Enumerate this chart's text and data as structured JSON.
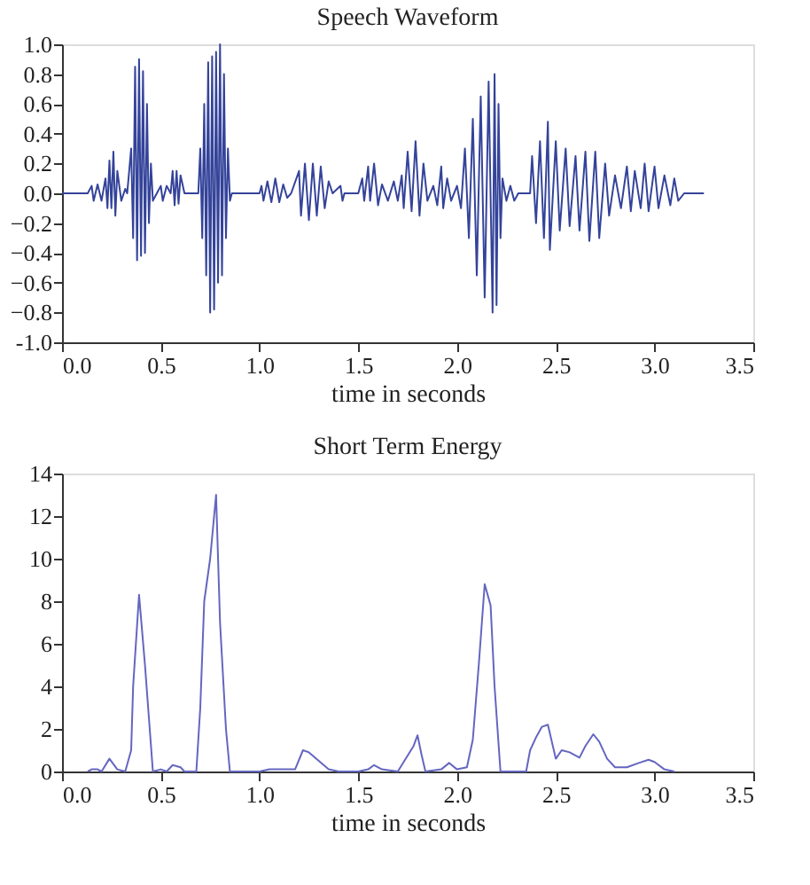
{
  "chart_data": [
    {
      "type": "line",
      "title": "Speech Waveform",
      "xlabel": "time in seconds",
      "xlim": [
        0,
        3.5
      ],
      "xticks": [
        {
          "value": 0,
          "label": "0.0"
        },
        0.5,
        {
          "value": 1,
          "label": "1.0"
        },
        1.5,
        {
          "value": 2,
          "label": "2.0"
        },
        2.5,
        {
          "value": 3,
          "label": "3.0"
        },
        3.5
      ],
      "ylim": [
        -1,
        1
      ],
      "yticks": [
        {
          "value": -1,
          "label": "-1.0"
        },
        -0.8,
        -0.6,
        -0.4,
        -0.2,
        {
          "value": 0,
          "label": "0.0"
        },
        0.2,
        0.4,
        0.6,
        0.8,
        {
          "value": 1,
          "label": "1.0"
        }
      ],
      "grid": false,
      "series": [
        {
          "color": "#34439a",
          "x": [
            0.0,
            0.13,
            0.15,
            0.16,
            0.18,
            0.2,
            0.22,
            0.23,
            0.24,
            0.25,
            0.26,
            0.27,
            0.28,
            0.3,
            0.32,
            0.33,
            0.35,
            0.36,
            0.37,
            0.38,
            0.39,
            0.4,
            0.41,
            0.42,
            0.43,
            0.44,
            0.45,
            0.46,
            0.48,
            0.5,
            0.51,
            0.53,
            0.55,
            0.56,
            0.57,
            0.58,
            0.59,
            0.6,
            0.62,
            0.69,
            0.7,
            0.71,
            0.72,
            0.73,
            0.74,
            0.75,
            0.76,
            0.77,
            0.78,
            0.79,
            0.8,
            0.81,
            0.82,
            0.83,
            0.84,
            0.85,
            0.86,
            1.0,
            1.01,
            1.02,
            1.04,
            1.06,
            1.08,
            1.1,
            1.12,
            1.14,
            1.16,
            1.2,
            1.21,
            1.23,
            1.25,
            1.27,
            1.29,
            1.31,
            1.33,
            1.35,
            1.37,
            1.41,
            1.42,
            1.43,
            1.5,
            1.52,
            1.53,
            1.55,
            1.56,
            1.58,
            1.6,
            1.62,
            1.65,
            1.68,
            1.7,
            1.72,
            1.73,
            1.75,
            1.77,
            1.79,
            1.81,
            1.83,
            1.85,
            1.88,
            1.9,
            1.92,
            1.93,
            1.95,
            1.97,
            2.0,
            2.02,
            2.04,
            2.06,
            2.08,
            2.1,
            2.12,
            2.14,
            2.16,
            2.18,
            2.19,
            2.2,
            2.21,
            2.22,
            2.23,
            2.25,
            2.27,
            2.29,
            2.31,
            2.37,
            2.38,
            2.4,
            2.42,
            2.44,
            2.46,
            2.47,
            2.5,
            2.52,
            2.55,
            2.57,
            2.6,
            2.62,
            2.65,
            2.67,
            2.7,
            2.72,
            2.75,
            2.77,
            2.8,
            2.83,
            2.86,
            2.88,
            2.9,
            2.93,
            2.95,
            2.97,
            3.0,
            3.02,
            3.05,
            3.08,
            3.1,
            3.12,
            3.15,
            3.25
          ],
          "values": [
            0,
            0,
            0.05,
            -0.05,
            0.06,
            -0.05,
            0.1,
            -0.1,
            0.22,
            -0.1,
            0.28,
            -0.15,
            0.15,
            -0.05,
            0.03,
            0,
            0.3,
            -0.3,
            0.85,
            -0.45,
            0.9,
            -0.42,
            0.82,
            -0.4,
            0.6,
            -0.2,
            0.2,
            -0.05,
            0,
            0.05,
            -0.05,
            0.05,
            0,
            0.15,
            -0.08,
            0.15,
            -0.07,
            0.12,
            0,
            0,
            0.3,
            -0.3,
            0.6,
            -0.55,
            0.88,
            -0.8,
            0.92,
            -0.78,
            0.95,
            -0.6,
            1.0,
            -0.55,
            0.8,
            -0.3,
            0.3,
            -0.05,
            0,
            0,
            0.05,
            -0.05,
            0.08,
            -0.06,
            0.1,
            -0.06,
            0.06,
            -0.03,
            0,
            0.15,
            -0.15,
            0.2,
            -0.18,
            0.2,
            -0.15,
            0.18,
            -0.1,
            0.08,
            0,
            0.05,
            -0.05,
            0,
            0,
            0.1,
            -0.05,
            0.18,
            -0.05,
            0.2,
            -0.08,
            0.06,
            -0.05,
            0.08,
            -0.05,
            0.12,
            -0.1,
            0.28,
            -0.12,
            0.35,
            -0.15,
            0.2,
            -0.05,
            0.05,
            -0.08,
            0.18,
            -0.1,
            0.1,
            -0.05,
            0.05,
            -0.1,
            0.3,
            -0.3,
            0.5,
            -0.55,
            0.65,
            -0.7,
            0.75,
            -0.8,
            0.8,
            -0.75,
            0.6,
            -0.3,
            0.1,
            -0.05,
            0.05,
            -0.05,
            0,
            0,
            0.25,
            -0.2,
            0.35,
            -0.3,
            0.48,
            -0.38,
            0.35,
            -0.25,
            0.3,
            -0.22,
            0.25,
            -0.25,
            0.28,
            -0.32,
            0.28,
            -0.3,
            0.2,
            -0.15,
            0.12,
            -0.1,
            0.18,
            -0.12,
            0.15,
            -0.1,
            0.2,
            -0.12,
            0.18,
            -0.1,
            0.12,
            -0.08,
            0.1,
            -0.05,
            0,
            0
          ]
        }
      ]
    },
    {
      "type": "line",
      "title": "Short Term Energy",
      "xlabel": "time in seconds",
      "xlim": [
        0,
        3.5
      ],
      "xticks": [
        {
          "value": 0,
          "label": "0.0"
        },
        0.5,
        {
          "value": 1,
          "label": "1.0"
        },
        1.5,
        {
          "value": 2,
          "label": "2.0"
        },
        2.5,
        {
          "value": 3,
          "label": "3.0"
        },
        3.5
      ],
      "ylim": [
        0,
        14
      ],
      "yticks": [
        0,
        2,
        4,
        6,
        8,
        10,
        12,
        14
      ],
      "grid": false,
      "series": [
        {
          "color": "#6466c0",
          "x": [
            0.13,
            0.15,
            0.18,
            0.2,
            0.24,
            0.28,
            0.32,
            0.35,
            0.36,
            0.39,
            0.42,
            0.44,
            0.46,
            0.5,
            0.53,
            0.56,
            0.6,
            0.62,
            0.68,
            0.7,
            0.72,
            0.75,
            0.78,
            0.8,
            0.83,
            0.85,
            1.0,
            1.05,
            1.1,
            1.18,
            1.22,
            1.25,
            1.3,
            1.35,
            1.4,
            1.5,
            1.55,
            1.58,
            1.62,
            1.7,
            1.78,
            1.8,
            1.82,
            1.84,
            1.92,
            1.96,
            2.0,
            2.05,
            2.08,
            2.11,
            2.14,
            2.17,
            2.19,
            2.22,
            2.35,
            2.37,
            2.4,
            2.43,
            2.46,
            2.5,
            2.53,
            2.57,
            2.62,
            2.65,
            2.69,
            2.72,
            2.76,
            2.8,
            2.86,
            2.92,
            2.97,
            3.0,
            3.05,
            3.1
          ],
          "values": [
            0,
            0.1,
            0.1,
            0,
            0.6,
            0.1,
            0,
            1,
            4,
            8.3,
            5,
            2.5,
            0,
            0.1,
            0,
            0.3,
            0.2,
            0,
            0,
            3,
            8,
            10,
            13,
            7,
            2,
            0,
            0,
            0.1,
            0.1,
            0.1,
            1.0,
            0.9,
            0.5,
            0.1,
            0,
            0,
            0.1,
            0.3,
            0.1,
            0,
            1.2,
            1.7,
            0.8,
            0,
            0.1,
            0.4,
            0.1,
            0.2,
            1.5,
            5,
            8.8,
            7.8,
            4,
            0,
            0,
            1.0,
            1.6,
            2.1,
            2.2,
            0.6,
            1.0,
            0.9,
            0.65,
            1.2,
            1.75,
            1.4,
            0.6,
            0.2,
            0.2,
            0.4,
            0.55,
            0.45,
            0.1,
            0
          ]
        }
      ]
    }
  ]
}
